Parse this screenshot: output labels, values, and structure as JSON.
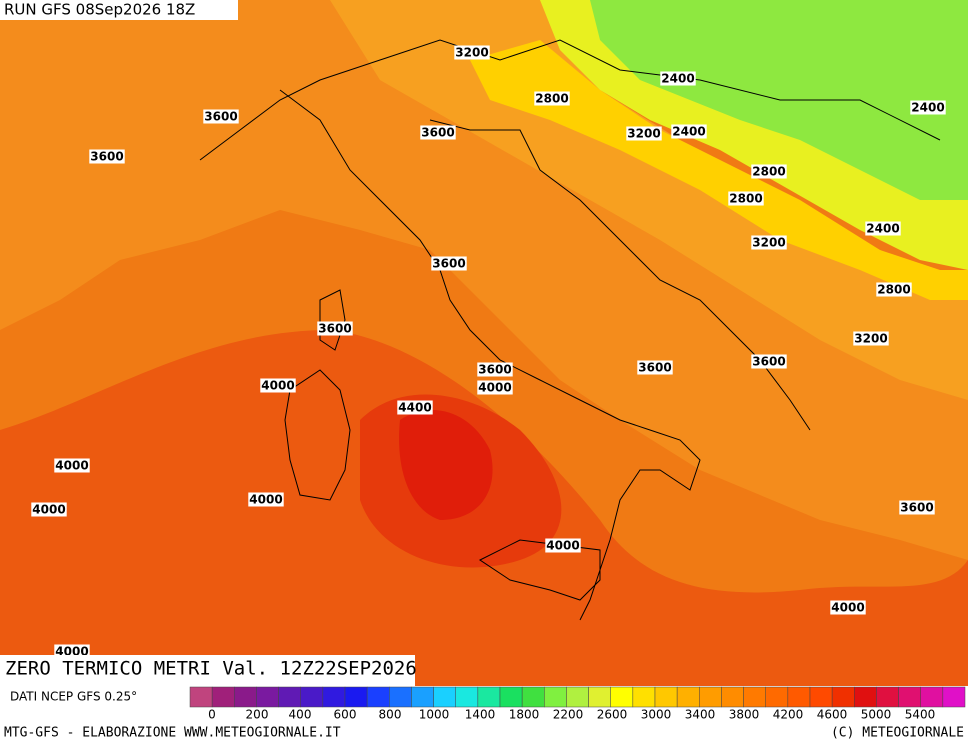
{
  "header": {
    "run": "RUN GFS 08Sep2026 18Z"
  },
  "map": {
    "contour_labels": [
      3200,
      2400,
      2800,
      2400,
      3600,
      3600,
      3200,
      2400,
      3600,
      2800,
      2800,
      2400,
      3200,
      3600,
      2800,
      3600,
      3200,
      3600,
      3600,
      3600,
      4000,
      4000,
      4400,
      4000,
      4000,
      4000,
      3600,
      4000,
      4000,
      4000
    ]
  },
  "title": "ZERO TERMICO METRI Val. 12Z22SEP2026",
  "source": "DATI NCEP GFS 0.25°",
  "colorbar": {
    "labels": [
      0,
      200,
      400,
      600,
      800,
      1000,
      1400,
      1800,
      2200,
      2600,
      3000,
      3400,
      3800,
      4200,
      4600,
      5000,
      5400
    ],
    "colors": [
      "#c0447e",
      "#a0207a",
      "#8a1a8a",
      "#7a1aa0",
      "#601ab4",
      "#4a1ac8",
      "#301ae0",
      "#1a1af0",
      "#1a40ff",
      "#1a70ff",
      "#1aa0ff",
      "#1ad0ff",
      "#1ae8e0",
      "#1ae8a0",
      "#1ae060",
      "#40e040",
      "#80f040",
      "#b0f040",
      "#e0f030",
      "#ffff00",
      "#ffe000",
      "#ffc800",
      "#ffb000",
      "#ff9c00",
      "#ff8c00",
      "#ff7a00",
      "#ff6a00",
      "#ff5a00",
      "#ff4a00",
      "#f03000",
      "#e01010",
      "#e01040",
      "#e01070",
      "#e010a0",
      "#e010c8"
    ]
  },
  "footer": {
    "left": "MTG-GFS - ELABORAZIONE WWW.METEOGIORNALE.IT",
    "right": "(C) METEOGIORNALE"
  }
}
